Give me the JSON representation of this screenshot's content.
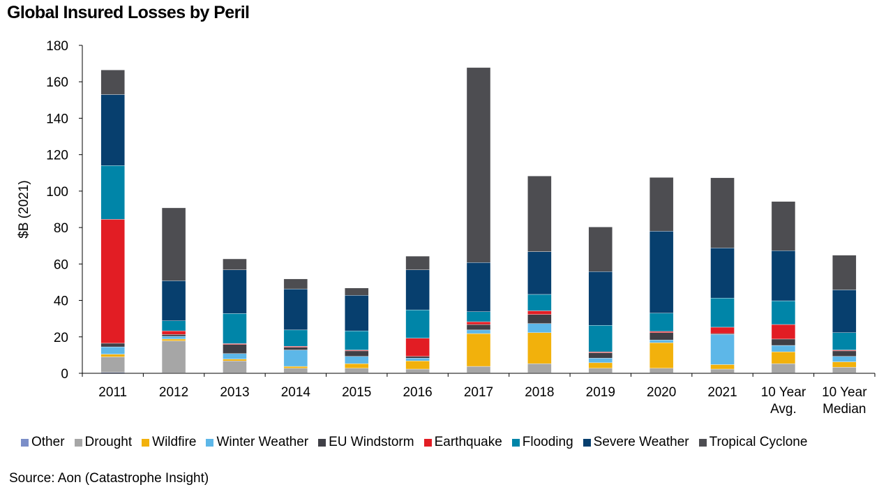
{
  "title": "Global Insured Losses by Peril",
  "source": "Source: Aon (Catastrophe Insight)",
  "chart_data": {
    "type": "bar",
    "stacked": true,
    "ylabel": "$B (2021)",
    "ylim": [
      0,
      180
    ],
    "yticks": [
      0,
      20,
      40,
      60,
      80,
      100,
      120,
      140,
      160,
      180
    ],
    "categories": [
      [
        "2011"
      ],
      [
        "2012"
      ],
      [
        "2013"
      ],
      [
        "2014"
      ],
      [
        "2015"
      ],
      [
        "2016"
      ],
      [
        "2017"
      ],
      [
        "2018"
      ],
      [
        "2019"
      ],
      [
        "2020"
      ],
      [
        "2021"
      ],
      [
        "10 Year",
        "Avg."
      ],
      [
        "10 Year",
        "Median"
      ]
    ],
    "legend_position": "bottom",
    "series": [
      {
        "name": "Other",
        "color": "#7b8ec8",
        "values": [
          0.5,
          0.3,
          0.3,
          0.3,
          0.3,
          0.3,
          0.3,
          0.3,
          0.3,
          0.3,
          0.3,
          0.3,
          0.3
        ]
      },
      {
        "name": "Drought",
        "color": "#a6a6a6",
        "values": [
          8.5,
          17.5,
          6.5,
          2.5,
          2.5,
          2,
          3.5,
          5,
          2.5,
          2.5,
          2,
          5,
          3
        ]
      },
      {
        "name": "Wildfire",
        "color": "#f2b10c",
        "values": [
          1.5,
          1,
          1,
          1,
          2.5,
          4.5,
          18,
          17,
          3,
          14,
          2.5,
          6.5,
          3
        ]
      },
      {
        "name": "Winter Weather",
        "color": "#5db7e8",
        "values": [
          4,
          1.5,
          3,
          9,
          4,
          1.5,
          2,
          5,
          2.5,
          1.5,
          16.5,
          3.5,
          3
        ]
      },
      {
        "name": "EU Windstorm",
        "color": "#3f3f46",
        "values": [
          2,
          1,
          5,
          1.5,
          3,
          1,
          3,
          5,
          3,
          4,
          0.5,
          3.5,
          3
        ]
      },
      {
        "name": "Earthquake",
        "color": "#e21d24",
        "values": [
          68,
          2,
          0.5,
          0.5,
          0.5,
          10,
          1.5,
          2,
          0.5,
          0.7,
          3.5,
          8,
          0.5
        ]
      },
      {
        "name": "Flooding",
        "color": "#0085a8",
        "values": [
          29.5,
          5.5,
          16.5,
          9,
          10.5,
          15.5,
          5.5,
          9,
          14.5,
          10,
          16,
          13,
          9.5
        ]
      },
      {
        "name": "Severe Weather",
        "color": "#073f6e",
        "values": [
          39,
          22,
          24,
          22.5,
          19.5,
          22,
          27,
          23.5,
          29.5,
          45,
          27.5,
          27.5,
          23.5
        ]
      },
      {
        "name": "Tropical Cyclone",
        "color": "#4d4d51",
        "values": [
          13.5,
          40,
          6,
          5.5,
          4,
          7.5,
          107,
          41.5,
          24.5,
          29.5,
          38.5,
          27,
          19
        ]
      }
    ]
  }
}
